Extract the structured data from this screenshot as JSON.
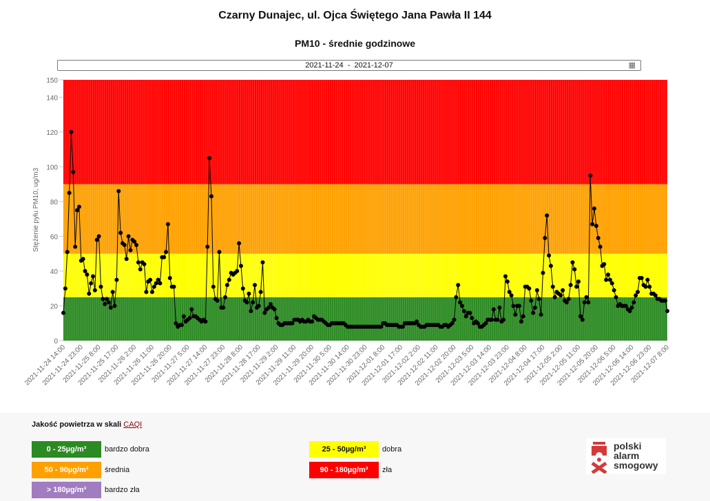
{
  "header": {
    "title": "Czarny Dunajec, ul. Ojca Świętego Jana Pawła II 144",
    "subtitle": "PM10 - średnie godzinowe",
    "date_range": "2021-11-24  -  2021-12-07"
  },
  "chart_data": {
    "type": "line",
    "title": "PM10 - średnie godzinowe",
    "ylabel": "Stężenie pyłu PM10, ug/m3",
    "xlabel": "",
    "ylim": [
      0,
      150
    ],
    "yticks": [
      0,
      20,
      40,
      60,
      80,
      100,
      120,
      140,
      150
    ],
    "x_start": "2021-11-24 14:00",
    "x_step_hours": 1,
    "xtick_every": 9,
    "xtick_labels": [
      "2021-11-24 14:00",
      "2021-11-24 23:00",
      "2021-11-25 8:00",
      "2021-11-25 17:00",
      "2021-11-26 2:00",
      "2021-11-26 11:00",
      "2021-11-26 20:00",
      "2021-11-27 5:00",
      "2021-11-27 14:00",
      "2021-11-27 23:00",
      "2021-11-28 8:00",
      "2021-11-28 17:00",
      "2021-11-29 2:00",
      "2021-11-29 11:00",
      "2021-11-29 20:00",
      "2021-11-30 5:00",
      "2021-11-30 14:00",
      "2021-11-30 23:00",
      "2021-12-01 8:00",
      "2021-12-01 17:00",
      "2021-12-02 2:00",
      "2021-12-02 11:00",
      "2021-12-02 20:00",
      "2021-12-03 5:00",
      "2021-12-03 14:00",
      "2021-12-03 23:00",
      "2021-12-04 8:00",
      "2021-12-04 17:00",
      "2021-12-05 2:00",
      "2021-12-05 11:00",
      "2021-12-05 20:00",
      "2021-12-06 5:00",
      "2021-12-06 14:00",
      "2021-12-06 23:00",
      "2021-12-07 8:00"
    ],
    "bands": [
      {
        "from": 0,
        "to": 25,
        "color": "#2b8a22"
      },
      {
        "from": 25,
        "to": 50,
        "color": "#ffff00"
      },
      {
        "from": 50,
        "to": 90,
        "color": "#ffa000"
      },
      {
        "from": 90,
        "to": 150,
        "color": "#ff0000"
      }
    ],
    "values": [
      16,
      30,
      51,
      85,
      120,
      97,
      54,
      75,
      77,
      46,
      47,
      40,
      38,
      27,
      33,
      37,
      29,
      58,
      60,
      31,
      24,
      21,
      24,
      22,
      19,
      28,
      20,
      35,
      86,
      62,
      56,
      55,
      47,
      60,
      52,
      58,
      57,
      55,
      45,
      41,
      45,
      44,
      28,
      34,
      35,
      28,
      31,
      33,
      35,
      33,
      48,
      48,
      51,
      67,
      36,
      31,
      31,
      10,
      8,
      9,
      9,
      14,
      11,
      12,
      13,
      18,
      14,
      14,
      13,
      12,
      11,
      12,
      11,
      54,
      105,
      83,
      31,
      24,
      23,
      51,
      19,
      19,
      25,
      32,
      35,
      39,
      38,
      39,
      40,
      56,
      43,
      30,
      23,
      22,
      27,
      17,
      22,
      32,
      19,
      20,
      28,
      45,
      16,
      18,
      19,
      21,
      19,
      18,
      13,
      10,
      9,
      9,
      10,
      10,
      10,
      10,
      10,
      12,
      12,
      12,
      11,
      12,
      11,
      11,
      12,
      11,
      11,
      14,
      13,
      12,
      12,
      12,
      11,
      10,
      9,
      9,
      10,
      10,
      10,
      10,
      10,
      10,
      10,
      9,
      8,
      8,
      8,
      8,
      8,
      8,
      8,
      8,
      8,
      8,
      8,
      8,
      8,
      8,
      8,
      8,
      8,
      8,
      10,
      10,
      9,
      9,
      9,
      9,
      9,
      9,
      8,
      8,
      8,
      10,
      10,
      10,
      10,
      10,
      10,
      11,
      9,
      8,
      8,
      8,
      9,
      9,
      9,
      9,
      9,
      9,
      9,
      8,
      8,
      9,
      9,
      8,
      9,
      10,
      12,
      25,
      32,
      22,
      20,
      17,
      14,
      16,
      16,
      13,
      10,
      11,
      10,
      8,
      8,
      9,
      10,
      12,
      12,
      12,
      18,
      12,
      12,
      19,
      11,
      12,
      37,
      34,
      28,
      26,
      20,
      15,
      20,
      20,
      11,
      14,
      31,
      31,
      30,
      23,
      16,
      19,
      29,
      24,
      15,
      39,
      59,
      72,
      49,
      43,
      31,
      25,
      28,
      27,
      26,
      29,
      23,
      22,
      24,
      32,
      45,
      41,
      31,
      34,
      14,
      12,
      22,
      25,
      22,
      95,
      67,
      76,
      66,
      59,
      54,
      43,
      44,
      35,
      38,
      35,
      33,
      29,
      25,
      20,
      21,
      20,
      20,
      20,
      18,
      17,
      19,
      22,
      26,
      28,
      36,
      36,
      32,
      31,
      35,
      31,
      27,
      27,
      26,
      24,
      24,
      23,
      23,
      23,
      17
    ]
  },
  "legend": {
    "title": "Jakość powietrza w skali ",
    "link": "CAQI",
    "items": [
      {
        "range": "0 - 25µg/m³",
        "label": "bardzo dobra",
        "color": "#2b8a22",
        "text_color": "#ffffff"
      },
      {
        "range": "25 - 50µg/m³",
        "label": "dobra",
        "color": "#ffff00",
        "text_color": "#111111"
      },
      {
        "range": "50 - 90µg/m³",
        "label": "średnia",
        "color": "#ffa000",
        "text_color": "#ffffff"
      },
      {
        "range": "90 - 180µg/m³",
        "label": "zła",
        "color": "#ff0000",
        "text_color": "#ffffff"
      },
      {
        "range": "> 180µg/m³",
        "label": "bardzo zła",
        "color": "#a07cc0",
        "text_color": "#ffffff"
      }
    ]
  },
  "logo": {
    "line1": "polski",
    "line2": "alarm",
    "line3": "smogowy"
  }
}
